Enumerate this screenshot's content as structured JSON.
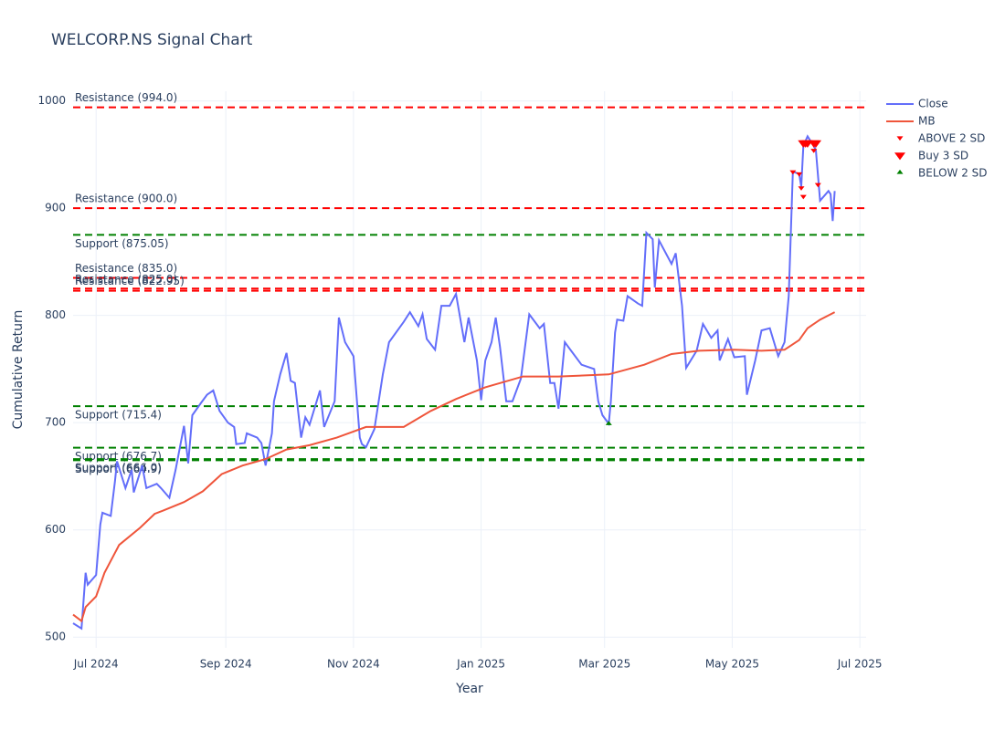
{
  "chart_data": {
    "type": "line",
    "title": "WELCORP.NS Signal Chart",
    "x_label": "Year",
    "y_label": "Cumulative Return",
    "xlim": [
      "2024-06-20",
      "2025-07-04"
    ],
    "xticks": [
      {
        "value": "2024-07-01",
        "label": "Jul 2024"
      },
      {
        "value": "2024-09-01",
        "label": "Sep 2024"
      },
      {
        "value": "2024-11-01",
        "label": "Nov 2024"
      },
      {
        "value": "2025-01-01",
        "label": "Jan 2025"
      },
      {
        "value": "2025-03-01",
        "label": "Mar 2025"
      },
      {
        "value": "2025-05-01",
        "label": "May 2025"
      },
      {
        "value": "2025-07-01",
        "label": "Jul 2025"
      }
    ],
    "ylim": [
      490,
      1009
    ],
    "yticks": [
      500,
      600,
      700,
      800,
      900,
      1000
    ],
    "grid": true,
    "levels": [
      {
        "label": "Resistance (994.0)",
        "value": 994,
        "color": "#ff0000",
        "label_position": "above"
      },
      {
        "label": "Resistance (900.0)",
        "value": 900,
        "color": "#ff0000",
        "label_position": "above"
      },
      {
        "label": "Support (875.05)",
        "value": 875.05,
        "color": "#008000",
        "label_position": "below"
      },
      {
        "label": "Resistance (835.0)",
        "value": 835,
        "color": "#ff0000",
        "label_position": "above"
      },
      {
        "label": "Resistance (825.0)",
        "value": 825,
        "color": "#ff0000",
        "label_position": "above"
      },
      {
        "label": "Resistance (822.95)",
        "value": 822.95,
        "color": "#ff0000",
        "label_position": "above"
      },
      {
        "label": "Support (715.4)",
        "value": 715.4,
        "color": "#008000",
        "label_position": "below"
      },
      {
        "label": "Support (676.7)",
        "value": 676.7,
        "color": "#008000",
        "label_position": "below"
      },
      {
        "label": "Support (666.0)",
        "value": 666,
        "color": "#008000",
        "label_position": "below"
      },
      {
        "label": "Support (664.9)",
        "value": 664.9,
        "color": "#008000",
        "label_position": "below"
      }
    ],
    "series": [
      {
        "name": "Close",
        "color": "#636efa",
        "mode": "lines",
        "x": [
          "2024-06-20",
          "2024-06-24",
          "2024-06-26",
          "2024-06-27",
          "2024-07-01",
          "2024-07-03",
          "2024-07-04",
          "2024-07-08",
          "2024-07-10",
          "2024-07-11",
          "2024-07-15",
          "2024-07-18",
          "2024-07-19",
          "2024-07-23",
          "2024-07-25",
          "2024-07-30",
          "2024-08-01",
          "2024-08-05",
          "2024-08-08",
          "2024-08-12",
          "2024-08-14",
          "2024-08-16",
          "2024-08-20",
          "2024-08-23",
          "2024-08-26",
          "2024-08-29",
          "2024-09-02",
          "2024-09-05",
          "2024-09-06",
          "2024-09-10",
          "2024-09-11",
          "2024-09-16",
          "2024-09-18",
          "2024-09-20",
          "2024-09-23",
          "2024-09-24",
          "2024-09-27",
          "2024-09-30",
          "2024-10-02",
          "2024-10-04",
          "2024-10-07",
          "2024-10-09",
          "2024-10-11",
          "2024-10-16",
          "2024-10-18",
          "2024-10-23",
          "2024-10-25",
          "2024-10-28",
          "2024-11-01",
          "2024-11-04",
          "2024-11-05",
          "2024-11-07",
          "2024-11-11",
          "2024-11-15",
          "2024-11-18",
          "2024-11-25",
          "2024-11-28",
          "2024-12-02",
          "2024-12-04",
          "2024-12-06",
          "2024-12-10",
          "2024-12-13",
          "2024-12-17",
          "2024-12-20",
          "2024-12-24",
          "2024-12-26",
          "2024-12-30",
          "2025-01-01",
          "2025-01-03",
          "2025-01-06",
          "2025-01-08",
          "2025-01-10",
          "2025-01-13",
          "2025-01-16",
          "2025-01-20",
          "2025-01-24",
          "2025-01-29",
          "2025-01-31",
          "2025-02-03",
          "2025-02-05",
          "2025-02-07",
          "2025-02-10",
          "2025-02-13",
          "2025-02-18",
          "2025-02-24",
          "2025-02-26",
          "2025-02-28",
          "2025-03-03",
          "2025-03-04",
          "2025-03-06",
          "2025-03-07",
          "2025-03-10",
          "2025-03-12",
          "2025-03-17",
          "2025-03-19",
          "2025-03-21",
          "2025-03-24",
          "2025-03-25",
          "2025-03-27",
          "2025-04-02",
          "2025-04-04",
          "2025-04-07",
          "2025-04-09",
          "2025-04-14",
          "2025-04-17",
          "2025-04-21",
          "2025-04-24",
          "2025-04-25",
          "2025-04-29",
          "2025-05-02",
          "2025-05-07",
          "2025-05-08",
          "2025-05-12",
          "2025-05-15",
          "2025-05-19",
          "2025-05-21",
          "2025-05-23",
          "2025-05-26",
          "2025-05-28",
          "2025-05-30",
          "2025-06-02",
          "2025-06-03",
          "2025-06-04",
          "2025-06-06",
          "2025-06-09",
          "2025-06-10",
          "2025-06-12",
          "2025-06-16",
          "2025-06-17",
          "2025-06-18",
          "2025-06-19"
        ],
        "values": [
          513,
          508,
          560,
          549,
          558,
          605,
          616,
          613,
          645,
          664,
          639,
          656,
          635,
          660,
          639,
          643,
          639,
          630,
          656,
          697,
          662,
          707,
          718,
          726,
          730,
          711,
          700,
          696,
          680,
          681,
          690,
          686,
          681,
          660,
          690,
          720,
          745,
          765,
          739,
          737,
          686,
          705,
          698,
          730,
          696,
          720,
          798,
          775,
          762,
          686,
          680,
          677,
          694,
          745,
          775,
          794,
          803,
          790,
          801,
          778,
          768,
          809,
          809,
          820,
          775,
          798,
          758,
          721,
          758,
          775,
          798,
          771,
          720,
          720,
          741,
          801,
          788,
          792,
          737,
          737,
          713,
          775,
          767,
          754,
          750,
          720,
          707,
          699,
          720,
          784,
          796,
          795,
          818,
          811,
          809,
          877,
          871,
          826,
          870,
          848,
          858,
          809,
          751,
          767,
          792,
          779,
          786,
          758,
          778,
          761,
          762,
          726,
          758,
          786,
          788,
          775,
          762,
          775,
          818,
          934,
          932,
          920,
          958,
          967,
          958,
          954,
          907,
          916,
          913,
          888,
          916
        ]
      },
      {
        "name": "MB",
        "color": "#ef553b",
        "mode": "lines",
        "x": [
          "2024-06-20",
          "2024-06-24",
          "2024-06-26",
          "2024-07-01",
          "2024-07-05",
          "2024-07-12",
          "2024-07-22",
          "2024-07-29",
          "2024-08-02",
          "2024-08-12",
          "2024-08-21",
          "2024-08-30",
          "2024-09-09",
          "2024-09-20",
          "2024-09-30",
          "2024-10-11",
          "2024-10-24",
          "2024-11-07",
          "2024-11-25",
          "2024-12-08",
          "2024-12-20",
          "2025-01-03",
          "2025-01-21",
          "2025-02-07",
          "2025-03-03",
          "2025-03-20",
          "2025-04-02",
          "2025-04-15",
          "2025-05-02",
          "2025-05-15",
          "2025-05-26",
          "2025-06-02",
          "2025-06-06",
          "2025-06-12",
          "2025-06-19"
        ],
        "values": [
          521,
          515,
          528,
          538,
          560,
          586,
          602,
          615,
          618,
          626,
          636,
          652,
          660,
          666,
          675,
          679,
          686,
          696,
          696,
          711,
          722,
          733,
          743,
          743,
          745,
          754,
          764,
          767,
          768,
          767,
          768,
          777,
          788,
          796,
          803
        ]
      },
      {
        "name": "ABOVE 2 SD",
        "color": "#ff0000",
        "mode": "markers",
        "symbol": "triangle-down",
        "size": 7,
        "x": [
          "2025-05-30",
          "2025-06-02",
          "2025-06-03",
          "2025-06-04",
          "2025-06-09",
          "2025-06-11"
        ],
        "values": [
          934,
          932,
          919,
          911,
          954,
          922
        ]
      },
      {
        "name": "Buy 3 SD",
        "color": "#ff0000",
        "mode": "markers",
        "symbol": "triangle-down",
        "size": 12,
        "x": [
          "2025-06-04",
          "2025-06-05",
          "2025-06-06",
          "2025-06-09",
          "2025-06-10"
        ],
        "values": [
          961,
          961,
          961,
          961,
          961
        ]
      },
      {
        "name": "BELOW 2 SD",
        "color": "#008000",
        "mode": "markers",
        "symbol": "triangle-up",
        "size": 7,
        "x": [
          "2025-03-03"
        ],
        "values": [
          699
        ]
      }
    ]
  }
}
